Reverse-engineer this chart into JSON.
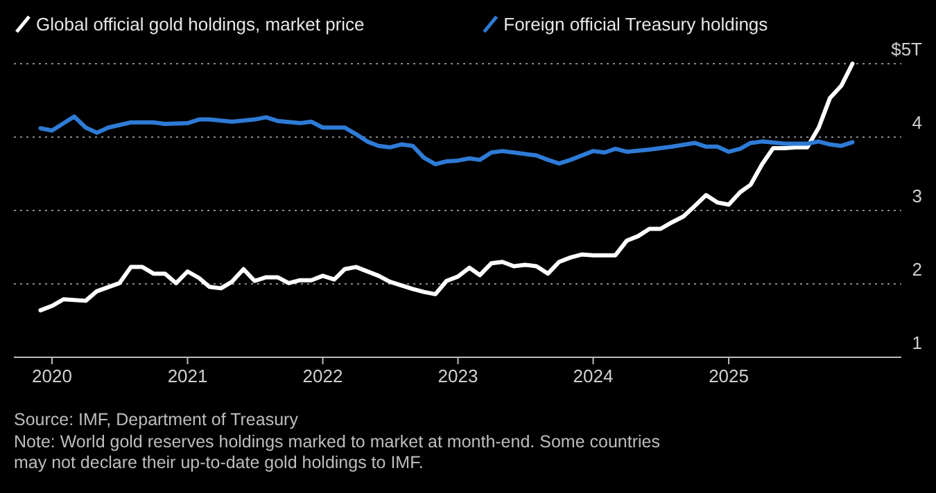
{
  "chart_data": {
    "type": "line",
    "x": [
      "2019-12",
      "2020-01",
      "2020-02",
      "2020-04",
      "2020-05",
      "2020-07",
      "2020-08",
      "2020-09",
      "2020-10",
      "2020-11",
      "2020-12",
      "2021-01",
      "2021-02",
      "2021-03",
      "2021-04",
      "2021-05",
      "2021-06",
      "2021-07",
      "2021-08",
      "2021-09",
      "2021-10",
      "2021-11",
      "2021-12",
      "2022-01",
      "2022-02",
      "2022-03",
      "2022-04",
      "2022-06",
      "2022-07",
      "2022-09",
      "2022-10",
      "2022-11",
      "2022-12",
      "2023-01",
      "2023-02",
      "2023-03",
      "2023-04",
      "2023-05",
      "2023-06",
      "2023-07",
      "2023-08",
      "2023-09",
      "2023-10",
      "2023-11",
      "2023-12",
      "2024-01",
      "2024-02",
      "2024-03",
      "2024-04",
      "2024-05",
      "2024-06",
      "2024-07",
      "2024-08",
      "2024-09",
      "2024-10",
      "2024-11",
      "2024-12",
      "2025-01",
      "2025-02",
      "2025-03",
      "2025-04",
      "2025-05",
      "2025-06",
      "2025-07",
      "2025-08",
      "2025-09",
      "2025-10",
      "2025-11",
      "2025-12"
    ],
    "series": [
      {
        "name": "Global official gold holdings, market price",
        "color": "#ffffff",
        "values": [
          1.64,
          1.7,
          1.79,
          1.77,
          1.9,
          2.01,
          2.23,
          2.23,
          2.14,
          2.14,
          2.01,
          2.17,
          2.08,
          1.96,
          1.94,
          2.03,
          2.2,
          2.04,
          2.09,
          2.09,
          2.01,
          2.05,
          2.05,
          2.11,
          2.06,
          2.2,
          2.23,
          2.11,
          2.03,
          1.93,
          1.89,
          1.86,
          2.04,
          2.1,
          2.22,
          2.12,
          2.28,
          2.3,
          2.24,
          2.26,
          2.24,
          2.14,
          2.3,
          2.36,
          2.4,
          2.39,
          2.39,
          2.39,
          2.59,
          2.65,
          2.75,
          2.75,
          2.84,
          2.92,
          3.06,
          3.21,
          3.11,
          3.08,
          3.25,
          3.35,
          3.63,
          3.85,
          3.85,
          3.86,
          3.86,
          4.13,
          4.53,
          4.7,
          5.0
        ]
      },
      {
        "name": "Foreign official Treasury holdings",
        "color": "#2e7bd6",
        "x": [
          "2019-12",
          "2020-01",
          "2020-03",
          "2020-04",
          "2020-05",
          "2020-06",
          "2020-08",
          "2020-10",
          "2020-11",
          "2021-01",
          "2021-02",
          "2021-03",
          "2021-05",
          "2021-07",
          "2021-08",
          "2021-09",
          "2021-11",
          "2021-12",
          "2022-01",
          "2022-03",
          "2022-04",
          "2022-05",
          "2022-06",
          "2022-07",
          "2022-08",
          "2022-09",
          "2022-10",
          "2022-11",
          "2022-12",
          "2023-01",
          "2023-02",
          "2023-03",
          "2023-04",
          "2023-05",
          "2023-06",
          "2023-08",
          "2023-09",
          "2023-10",
          "2023-11",
          "2024-01",
          "2024-02",
          "2024-03",
          "2024-04",
          "2024-06",
          "2024-08",
          "2024-10",
          "2024-11",
          "2024-12",
          "2025-01",
          "2025-02",
          "2025-03",
          "2025-04",
          "2025-06",
          "2025-08",
          "2025-09",
          "2025-10",
          "2025-11",
          "2025-12"
        ],
        "values": [
          4.12,
          4.09,
          4.28,
          4.13,
          4.06,
          4.13,
          4.2,
          4.2,
          4.18,
          4.19,
          4.24,
          4.24,
          4.21,
          4.24,
          4.27,
          4.22,
          4.19,
          4.21,
          4.13,
          4.13,
          4.04,
          3.94,
          3.88,
          3.86,
          3.9,
          3.88,
          3.72,
          3.63,
          3.67,
          3.68,
          3.71,
          3.69,
          3.79,
          3.81,
          3.79,
          3.75,
          3.69,
          3.64,
          3.69,
          3.81,
          3.79,
          3.84,
          3.8,
          3.83,
          3.87,
          3.92,
          3.87,
          3.87,
          3.8,
          3.84,
          3.92,
          3.94,
          3.91,
          3.91,
          3.94,
          3.9,
          3.88,
          3.93
        ]
      }
    ],
    "xlim": [
      "2019-09-20",
      "2026-04-12"
    ],
    "xticks": [
      "2020",
      "2021",
      "2022",
      "2023",
      "2024",
      "2025"
    ],
    "ylim": [
      1,
      5
    ],
    "yticks": [
      1,
      2,
      3,
      4,
      {
        "value": 5,
        "label": "$5T"
      }
    ],
    "grid": "y",
    "legend": "top left",
    "annotations": [
      "Source: IMF, Department of Treasury",
      "Note: World gold reserves holdings marked to market at month-end. Some countries may not declare their up-to-date gold holdings to IMF."
    ]
  }
}
